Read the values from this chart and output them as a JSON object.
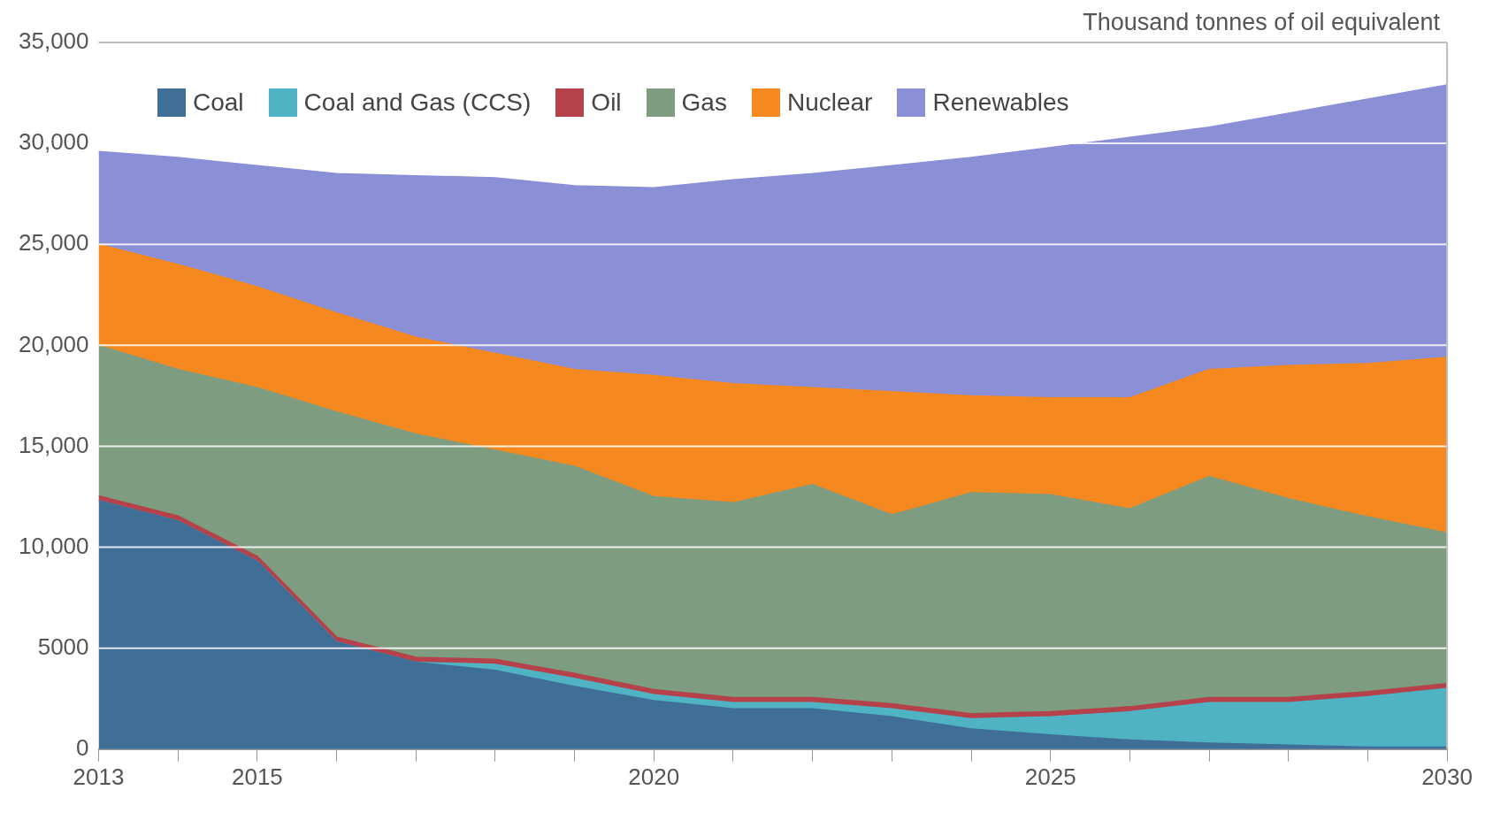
{
  "chart_data": {
    "type": "area",
    "stacked": true,
    "ylabel": "Thousand tonnes of oil equivalent",
    "x": [
      2013,
      2014,
      2015,
      2016,
      2017,
      2018,
      2019,
      2020,
      2021,
      2022,
      2023,
      2024,
      2025,
      2026,
      2027,
      2028,
      2029,
      2030
    ],
    "xlim": [
      2013,
      2030
    ],
    "xticks": [
      2013,
      {
        "value": 2014,
        "label": null
      },
      2015,
      {
        "value": 2016,
        "label": null
      },
      {
        "value": 2017,
        "label": null
      },
      {
        "value": 2018,
        "label": null
      },
      {
        "value": 2019,
        "label": null
      },
      2020,
      {
        "value": 2021,
        "label": null
      },
      {
        "value": 2022,
        "label": null
      },
      {
        "value": 2023,
        "label": null
      },
      {
        "value": 2024,
        "label": null
      },
      2025,
      {
        "value": 2026,
        "label": null
      },
      {
        "value": 2027,
        "label": null
      },
      {
        "value": 2028,
        "label": null
      },
      {
        "value": 2029,
        "label": null
      },
      2030
    ],
    "ylim": [
      0,
      35000
    ],
    "yticks": [
      0,
      {
        "value": 5000,
        "label": "5000"
      },
      {
        "value": 10000,
        "label": "10,000"
      },
      {
        "value": 15000,
        "label": "15,000"
      },
      {
        "value": 20000,
        "label": "20,000"
      },
      {
        "value": 25000,
        "label": "25,000"
      },
      {
        "value": 30000,
        "label": "30,000"
      },
      {
        "value": 35000,
        "label": "35,000"
      }
    ],
    "grid": "y",
    "legend": "top left",
    "series": [
      {
        "name": "Coal",
        "color": "#3f6e96",
        "values": [
          12300,
          11300,
          9300,
          5300,
          4300,
          3900,
          3100,
          2400,
          2000,
          2000,
          1600,
          1000,
          700,
          450,
          300,
          200,
          100,
          100
        ]
      },
      {
        "name": "Coal and Gas (CCS)",
        "color": "#4fb3c4",
        "values": [
          0,
          0,
          0,
          0,
          0,
          300,
          400,
          300,
          300,
          300,
          400,
          500,
          900,
          1400,
          2000,
          2100,
          2500,
          2900
        ]
      },
      {
        "name": "Oil",
        "color": "#b5424a",
        "values": [
          250,
          250,
          250,
          250,
          250,
          250,
          250,
          250,
          250,
          250,
          250,
          250,
          250,
          250,
          250,
          250,
          250,
          250
        ]
      },
      {
        "name": "Gas",
        "color": "#7e9c80",
        "values": [
          7450,
          7250,
          8350,
          11150,
          11050,
          10350,
          10250,
          9550,
          9650,
          10550,
          9350,
          10950,
          10750,
          9800,
          10950,
          9850,
          8650,
          7450
        ]
      },
      {
        "name": "Nuclear",
        "color": "#f5891f",
        "values": [
          5000,
          5200,
          5000,
          4900,
          4800,
          4800,
          4800,
          6000,
          5900,
          4800,
          6100,
          4800,
          4800,
          5500,
          5300,
          6600,
          7600,
          8700
        ]
      },
      {
        "name": "Renewables",
        "color": "#8a8fd6",
        "values": [
          4600,
          5300,
          6000,
          6900,
          8000,
          8700,
          9100,
          9300,
          10100,
          10600,
          11200,
          11800,
          12400,
          12900,
          12000,
          12500,
          13100,
          13500
        ]
      }
    ]
  }
}
